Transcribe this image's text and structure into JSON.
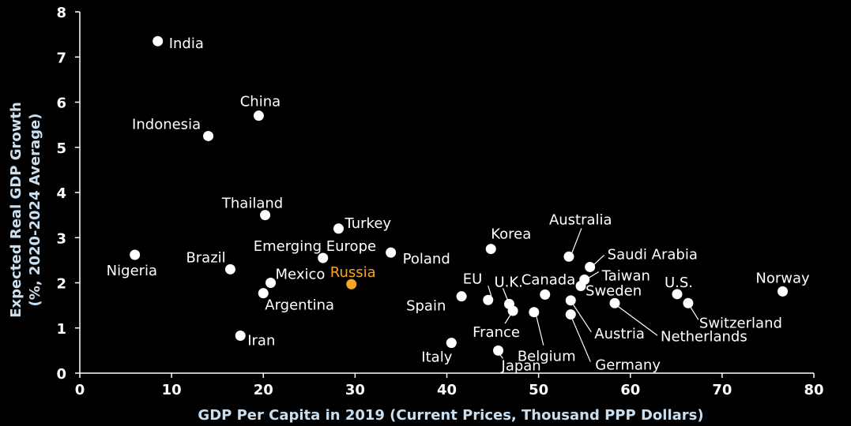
{
  "chart_data": {
    "type": "scatter",
    "xlabel": "GDP Per Capita in 2019 (Current Prices, Thousand PPP Dollars)",
    "ylabel_lines": [
      "Expected Real GDP Growth",
      "(%, 2020-2024 Average)"
    ],
    "xlim": [
      0,
      80
    ],
    "ylim": [
      0,
      8
    ],
    "x_ticks": [
      "0",
      "10",
      "20",
      "30",
      "40",
      "50",
      "60",
      "70",
      "80"
    ],
    "y_ticks": [
      "0",
      "1",
      "2",
      "3",
      "4",
      "5",
      "6",
      "7",
      "8"
    ],
    "grid": false,
    "point_color": "#ffffff",
    "highlight_color": "#f5a623",
    "axis_title_color": "#c9dff0",
    "points": [
      {
        "name": "India",
        "x": 8.5,
        "y": 7.35
      },
      {
        "name": "China",
        "x": 19.5,
        "y": 5.7
      },
      {
        "name": "Indonesia",
        "x": 14.0,
        "y": 5.25
      },
      {
        "name": "Thailand",
        "x": 20.2,
        "y": 3.5
      },
      {
        "name": "Turkey",
        "x": 28.2,
        "y": 3.2
      },
      {
        "name": "Emerging Europe",
        "x": 26.5,
        "y": 2.55
      },
      {
        "name": "Poland",
        "x": 33.9,
        "y": 2.67
      },
      {
        "name": "Nigeria",
        "x": 6.0,
        "y": 2.62
      },
      {
        "name": "Brazil",
        "x": 16.4,
        "y": 2.3
      },
      {
        "name": "Mexico",
        "x": 20.8,
        "y": 2.0
      },
      {
        "name": "Argentina",
        "x": 20.0,
        "y": 1.77
      },
      {
        "name": "Russia",
        "x": 29.6,
        "y": 1.97,
        "highlight": true
      },
      {
        "name": "Iran",
        "x": 17.5,
        "y": 0.83
      },
      {
        "name": "Spain",
        "x": 41.6,
        "y": 1.7
      },
      {
        "name": "EU",
        "x": 44.5,
        "y": 1.62
      },
      {
        "name": "U.K.",
        "x": 46.8,
        "y": 1.53
      },
      {
        "name": "France",
        "x": 47.2,
        "y": 1.38
      },
      {
        "name": "Belgium",
        "x": 49.5,
        "y": 1.35
      },
      {
        "name": "Korea",
        "x": 44.8,
        "y": 2.75
      },
      {
        "name": "Canada",
        "x": 50.7,
        "y": 1.74
      },
      {
        "name": "Australia",
        "x": 53.3,
        "y": 2.58
      },
      {
        "name": "Saudi Arabia",
        "x": 55.6,
        "y": 2.35
      },
      {
        "name": "Taiwan",
        "x": 55.0,
        "y": 2.07
      },
      {
        "name": "Sweden",
        "x": 54.6,
        "y": 1.93
      },
      {
        "name": "Austria",
        "x": 53.5,
        "y": 1.61
      },
      {
        "name": "Germany",
        "x": 53.5,
        "y": 1.3
      },
      {
        "name": "Netherlands",
        "x": 58.3,
        "y": 1.55
      },
      {
        "name": "U.S.",
        "x": 65.1,
        "y": 1.75
      },
      {
        "name": "Switzerland",
        "x": 66.3,
        "y": 1.55
      },
      {
        "name": "Norway",
        "x": 76.6,
        "y": 1.81
      },
      {
        "name": "Italy",
        "x": 40.5,
        "y": 0.67
      },
      {
        "name": "Japan",
        "x": 45.6,
        "y": 0.5
      }
    ]
  }
}
